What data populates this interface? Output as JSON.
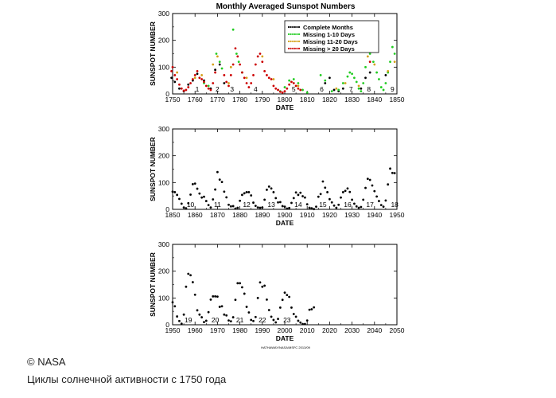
{
  "chart_data": {
    "title": "Monthly Averaged Sunspot Numbers",
    "credit": "HATHAWAY/NASA/MSFC 2013/09",
    "legend": {
      "placement": "top-right",
      "entries": [
        {
          "label": "Complete Months",
          "color": "#000000"
        },
        {
          "label": "Missing 1-10 Days",
          "color": "#22cc22"
        },
        {
          "label": "Missing 11-20 Days",
          "color": "#d4a017"
        },
        {
          "label": "Missing > 20 Days",
          "color": "#cc0000"
        }
      ]
    },
    "panels": [
      {
        "type": "scatter",
        "xlabel": "DATE",
        "ylabel": "SUNSPOT NUMBER",
        "xlim": [
          1750,
          1850
        ],
        "ylim": [
          0,
          300
        ],
        "xticks": [
          "1750",
          "1760",
          "1770",
          "1780",
          "1790",
          "1800",
          "1810",
          "1820",
          "1830",
          "1840",
          "1850"
        ],
        "yticks": [
          "0",
          "100",
          "200",
          "300"
        ],
        "cycles": [
          {
            "label": "1",
            "x": 1761
          },
          {
            "label": "2",
            "x": 1770
          },
          {
            "label": "3",
            "x": 1776.5
          },
          {
            "label": "4",
            "x": 1787
          },
          {
            "label": "5",
            "x": 1804
          },
          {
            "label": "6",
            "x": 1816.5
          },
          {
            "label": "7",
            "x": 1829.5
          },
          {
            "label": "8",
            "x": 1837.5
          },
          {
            "label": "9",
            "x": 1848
          }
        ],
        "series": [
          {
            "name": "Complete Months",
            "color": "#000000",
            "x": [
              1749.5,
              1751,
              1753,
              1755,
              1757,
              1759,
              1761,
              1764,
              1767,
              1769,
              1771,
              1773,
              1818,
              1820,
              1822,
              1824,
              1826,
              1834,
              1836,
              1838,
              1845
            ],
            "y": [
              60,
              45,
              20,
              10,
              35,
              50,
              75,
              50,
              20,
              90,
              110,
              40,
              40,
              60,
              15,
              10,
              20,
              20,
              60,
              80,
              70
            ]
          },
          {
            "name": "Missing 1-10 Days",
            "color": "#22cc22",
            "x": [
              1764,
              1766,
              1769.5,
              1771,
              1772,
              1777,
              1778.5,
              1779.5,
              1781,
              1798,
              1800,
              1802,
              1804,
              1806,
              1808,
              1810,
              1816,
              1818,
              1821,
              1824,
              1826,
              1828,
              1829,
              1830,
              1831,
              1832,
              1833,
              1834,
              1835,
              1836,
              1838,
              1839.5,
              1841,
              1842,
              1843,
              1844,
              1845,
              1846,
              1847,
              1848,
              1849
            ],
            "y": [
              40,
              30,
              150,
              120,
              95,
              240,
              150,
              120,
              80,
              10,
              25,
              50,
              55,
              40,
              15,
              5,
              70,
              50,
              10,
              15,
              40,
              65,
              80,
              75,
              60,
              45,
              20,
              10,
              40,
              100,
              150,
              120,
              80,
              55,
              25,
              15,
              40,
              80,
              120,
              175,
              150
            ]
          },
          {
            "name": "Missing 11-20 Days",
            "color": "#d4a017",
            "x": [
              1752,
              1760,
              1763,
              1768,
              1770,
              1775,
              1776,
              1783,
              1790,
              1795,
              1806,
              1823,
              1827,
              1833,
              1837,
              1840,
              1846,
              1849
            ],
            "y": [
              80,
              60,
              70,
              110,
              140,
              40,
              100,
              60,
              140,
              55,
              30,
              20,
              40,
              30,
              140,
              110,
              85,
              120
            ]
          },
          {
            "name": "Missing > 20 Days",
            "color": "#cc0000",
            "x": [
              1749.5,
              1750,
              1751,
              1752,
              1753,
              1754,
              1755,
              1756,
              1757,
              1758,
              1759,
              1760,
              1761,
              1762,
              1763,
              1764,
              1765,
              1766,
              1767,
              1768,
              1769,
              1773,
              1774,
              1775,
              1776,
              1777,
              1778,
              1779,
              1780,
              1781,
              1782,
              1783,
              1784,
              1785,
              1786,
              1787,
              1788,
              1789,
              1790,
              1791,
              1792,
              1793,
              1794,
              1795,
              1796,
              1797,
              1798,
              1799,
              1800,
              1801,
              1802,
              1803,
              1804,
              1805,
              1806,
              1807,
              1837,
              1838
            ],
            "y": [
              85,
              100,
              70,
              55,
              35,
              20,
              12,
              15,
              25,
              40,
              55,
              70,
              85,
              60,
              55,
              45,
              30,
              20,
              15,
              40,
              80,
              70,
              45,
              30,
              70,
              110,
              170,
              140,
              110,
              80,
              60,
              40,
              25,
              40,
              70,
              110,
              140,
              150,
              120,
              85,
              70,
              60,
              55,
              30,
              20,
              15,
              8,
              5,
              10,
              20,
              35,
              45,
              40,
              30,
              20,
              15,
              160,
              120
            ]
          }
        ]
      },
      {
        "type": "scatter",
        "xlabel": "DATE",
        "ylabel": "SUNSPOT NUMBER",
        "xlim": [
          1850,
          1950
        ],
        "ylim": [
          0,
          300
        ],
        "xticks": [
          "1850",
          "1860",
          "1870",
          "1880",
          "1890",
          "1900",
          "1910",
          "1920",
          "1930",
          "1940",
          "1950"
        ],
        "yticks": [
          "0",
          "100",
          "200",
          "300"
        ],
        "cycles": [
          {
            "label": "10",
            "x": 1858
          },
          {
            "label": "11",
            "x": 1870
          },
          {
            "label": "12",
            "x": 1883
          },
          {
            "label": "13",
            "x": 1894
          },
          {
            "label": "14",
            "x": 1906
          },
          {
            "label": "15",
            "x": 1917
          },
          {
            "label": "16",
            "x": 1928
          },
          {
            "label": "17",
            "x": 1938
          },
          {
            "label": "18",
            "x": 1949
          }
        ],
        "series": [
          {
            "name": "Complete Months",
            "color": "#000000",
            "x": [
              1850,
              1851,
              1852,
              1853,
              1854,
              1855,
              1856,
              1857,
              1858,
              1859,
              1860,
              1861,
              1862,
              1863,
              1864,
              1865,
              1866,
              1867,
              1868,
              1869,
              1870,
              1871,
              1872,
              1873,
              1874,
              1875,
              1876,
              1877,
              1878,
              1879,
              1880,
              1881,
              1882,
              1883,
              1884,
              1885,
              1886,
              1887,
              1888,
              1889,
              1890,
              1891,
              1892,
              1893,
              1894,
              1895,
              1896,
              1897,
              1898,
              1899,
              1900,
              1901,
              1902,
              1903,
              1904,
              1905,
              1906,
              1907,
              1908,
              1909,
              1910,
              1911,
              1912,
              1913,
              1914,
              1915,
              1916,
              1917,
              1918,
              1919,
              1920,
              1921,
              1922,
              1923,
              1924,
              1925,
              1926,
              1927,
              1928,
              1929,
              1930,
              1931,
              1932,
              1933,
              1934,
              1935,
              1936,
              1937,
              1938,
              1939,
              1940,
              1941,
              1942,
              1943,
              1944,
              1945,
              1946,
              1947,
              1948,
              1949
            ],
            "y": [
              66,
              64,
              54,
              39,
              21,
              7,
              4,
              23,
              55,
              94,
              96,
              77,
              59,
              44,
              47,
              31,
              16,
              7,
              37,
              74,
              139,
              111,
              102,
              66,
              45,
              17,
              11,
              12,
              3,
              6,
              32,
              54,
              60,
              64,
              64,
              52,
              25,
              13,
              7,
              6,
              7,
              36,
              73,
              85,
              78,
              64,
              42,
              26,
              27,
              12,
              10,
              3,
              5,
              24,
              42,
              63,
              54,
              62,
              49,
              44,
              19,
              6,
              4,
              1,
              10,
              47,
              57,
              104,
              81,
              64,
              38,
              26,
              14,
              6,
              17,
              44,
              64,
              69,
              78,
              65,
              36,
              21,
              11,
              6,
              9,
              36,
              80,
              114,
              110,
              89,
              68,
              48,
              31,
              16,
              10,
              33,
              93,
              152,
              136,
              135
            ]
          }
        ]
      },
      {
        "type": "scatter",
        "xlabel": "DATE",
        "ylabel": "SUNSPOT NUMBER",
        "xlim": [
          1950,
          2050
        ],
        "ylim": [
          0,
          300
        ],
        "xticks": [
          "1950",
          "1960",
          "1970",
          "1980",
          "1990",
          "2000",
          "2010",
          "2020",
          "2030",
          "2040",
          "2050"
        ],
        "yticks": [
          "0",
          "100",
          "200",
          "300"
        ],
        "cycles": [
          {
            "label": "19",
            "x": 1957
          },
          {
            "label": "20",
            "x": 1969
          },
          {
            "label": "21",
            "x": 1980
          },
          {
            "label": "22",
            "x": 1990
          },
          {
            "label": "23",
            "x": 2001
          }
        ],
        "series": [
          {
            "name": "Complete Months",
            "color": "#000000",
            "x": [
              1950,
              1951,
              1952,
              1953,
              1954,
              1955,
              1956,
              1957,
              1958,
              1959,
              1960,
              1961,
              1962,
              1963,
              1964,
              1965,
              1966,
              1967,
              1968,
              1969,
              1970,
              1971,
              1972,
              1973,
              1974,
              1975,
              1976,
              1977,
              1978,
              1979,
              1980,
              1981,
              1982,
              1983,
              1984,
              1985,
              1986,
              1987,
              1988,
              1989,
              1990,
              1991,
              1992,
              1993,
              1994,
              1995,
              1996,
              1997,
              1998,
              1999,
              2000,
              2001,
              2002,
              2003,
              2004,
              2005,
              2006,
              2007,
              2008,
              2009,
              2010,
              2011,
              2012,
              2013
            ],
            "y": [
              84,
              69,
              31,
              14,
              4,
              38,
              142,
              190,
              185,
              159,
              112,
              54,
              38,
              28,
              10,
              15,
              47,
              94,
              106,
              106,
              105,
              67,
              69,
              38,
              35,
              16,
              13,
              28,
              93,
              155,
              155,
              140,
              116,
              67,
              46,
              18,
              14,
              29,
              100,
              158,
              142,
              146,
              94,
              55,
              30,
              18,
              9,
              22,
              64,
              93,
              120,
              111,
              104,
              64,
              40,
              30,
              15,
              8,
              3,
              3,
              16,
              56,
              58,
              65
            ]
          }
        ]
      }
    ]
  },
  "caption": {
    "copyright": "© NASA",
    "subtitle": "Циклы солнечной активности с 1750 года"
  }
}
